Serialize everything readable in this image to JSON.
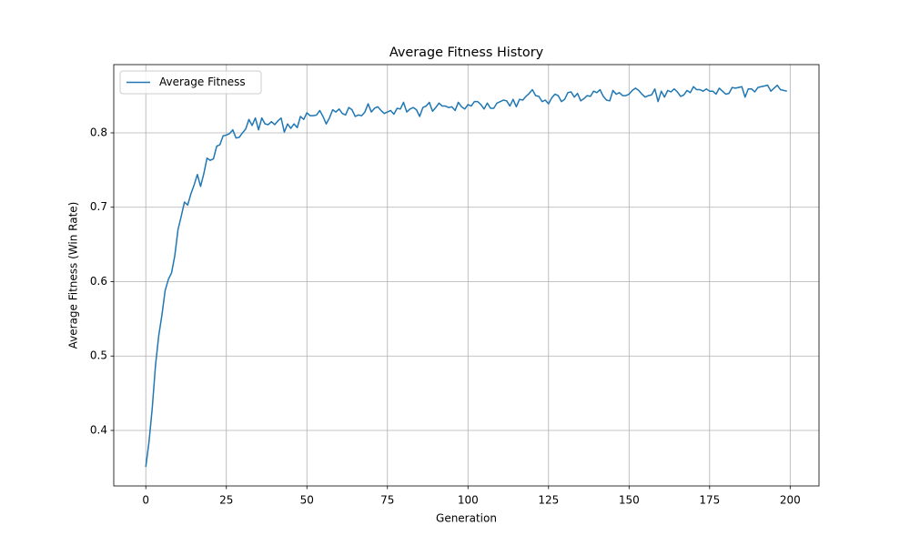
{
  "chart_data": {
    "type": "line",
    "title": "Average Fitness History",
    "x_label": "Generation",
    "y_label": "Average Fitness (Win Rate)",
    "x": [
      0,
      1,
      2,
      3,
      4,
      5,
      6,
      7,
      8,
      9,
      10,
      11,
      12,
      13,
      14,
      15,
      16,
      17,
      18,
      19,
      20,
      21,
      22,
      23,
      24,
      25,
      26,
      27,
      28,
      29,
      30,
      31,
      32,
      33,
      34,
      35,
      36,
      37,
      38,
      39,
      40,
      41,
      42,
      43,
      44,
      45,
      46,
      47,
      48,
      49,
      50,
      51,
      52,
      53,
      54,
      55,
      56,
      57,
      58,
      59,
      60,
      61,
      62,
      63,
      64,
      65,
      66,
      67,
      68,
      69,
      70,
      71,
      72,
      73,
      74,
      75,
      76,
      77,
      78,
      79,
      80,
      81,
      82,
      83,
      84,
      85,
      86,
      87,
      88,
      89,
      90,
      91,
      92,
      93,
      94,
      95,
      96,
      97,
      98,
      99,
      100,
      101,
      102,
      103,
      104,
      105,
      106,
      107,
      108,
      109,
      110,
      111,
      112,
      113,
      114,
      115,
      116,
      117,
      118,
      119,
      120,
      121,
      122,
      123,
      124,
      125,
      126,
      127,
      128,
      129,
      130,
      131,
      132,
      133,
      134,
      135,
      136,
      137,
      138,
      139,
      140,
      141,
      142,
      143,
      144,
      145,
      146,
      147,
      148,
      149,
      150,
      151,
      152,
      153,
      154,
      155,
      156,
      157,
      158,
      159,
      160,
      161,
      162,
      163,
      164,
      165,
      166,
      167,
      168,
      169,
      170,
      171,
      172,
      173,
      174,
      175,
      176,
      177,
      178,
      179,
      180,
      181,
      182,
      183,
      184,
      185,
      186,
      187,
      188,
      189,
      190,
      191,
      192,
      193,
      194,
      195,
      196,
      197,
      198,
      199
    ],
    "series": [
      {
        "name": "Average Fitness",
        "color": "#1f77b4",
        "values": [
          0.351,
          0.385,
          0.43,
          0.487,
          0.527,
          0.555,
          0.588,
          0.603,
          0.612,
          0.635,
          0.67,
          0.688,
          0.707,
          0.703,
          0.718,
          0.73,
          0.744,
          0.728,
          0.745,
          0.766,
          0.763,
          0.765,
          0.782,
          0.784,
          0.796,
          0.797,
          0.799,
          0.804,
          0.793,
          0.794,
          0.8,
          0.805,
          0.818,
          0.81,
          0.82,
          0.804,
          0.82,
          0.812,
          0.811,
          0.815,
          0.811,
          0.816,
          0.82,
          0.801,
          0.812,
          0.806,
          0.812,
          0.807,
          0.822,
          0.818,
          0.827,
          0.823,
          0.823,
          0.824,
          0.83,
          0.822,
          0.812,
          0.82,
          0.831,
          0.828,
          0.832,
          0.826,
          0.824,
          0.834,
          0.831,
          0.822,
          0.824,
          0.823,
          0.828,
          0.839,
          0.828,
          0.833,
          0.835,
          0.83,
          0.826,
          0.828,
          0.83,
          0.825,
          0.833,
          0.832,
          0.841,
          0.828,
          0.832,
          0.834,
          0.831,
          0.822,
          0.834,
          0.836,
          0.841,
          0.829,
          0.834,
          0.84,
          0.836,
          0.836,
          0.834,
          0.835,
          0.83,
          0.841,
          0.835,
          0.832,
          0.838,
          0.836,
          0.842,
          0.842,
          0.838,
          0.832,
          0.84,
          0.833,
          0.833,
          0.84,
          0.842,
          0.844,
          0.843,
          0.836,
          0.845,
          0.835,
          0.845,
          0.844,
          0.849,
          0.853,
          0.858,
          0.85,
          0.849,
          0.842,
          0.844,
          0.839,
          0.847,
          0.852,
          0.85,
          0.842,
          0.845,
          0.854,
          0.855,
          0.848,
          0.853,
          0.843,
          0.846,
          0.85,
          0.849,
          0.856,
          0.854,
          0.858,
          0.849,
          0.844,
          0.843,
          0.857,
          0.852,
          0.854,
          0.85,
          0.85,
          0.852,
          0.857,
          0.86,
          0.857,
          0.852,
          0.848,
          0.85,
          0.851,
          0.859,
          0.842,
          0.856,
          0.848,
          0.857,
          0.855,
          0.859,
          0.855,
          0.849,
          0.851,
          0.857,
          0.854,
          0.862,
          0.858,
          0.858,
          0.856,
          0.859,
          0.856,
          0.856,
          0.852,
          0.86,
          0.856,
          0.852,
          0.853,
          0.861,
          0.86,
          0.861,
          0.862,
          0.848,
          0.859,
          0.859,
          0.855,
          0.861,
          0.862,
          0.863,
          0.864,
          0.856,
          0.86,
          0.864,
          0.858,
          0.857,
          0.856
        ]
      }
    ],
    "xlim": [
      -9.95,
      208.95
    ],
    "ylim": [
      0.3254,
      0.8917
    ],
    "xticks": [
      0,
      25,
      50,
      75,
      100,
      125,
      150,
      175,
      200
    ],
    "yticks": [
      0.4,
      0.5,
      0.6,
      0.7,
      0.8
    ],
    "grid": true,
    "legend": "upper left"
  }
}
